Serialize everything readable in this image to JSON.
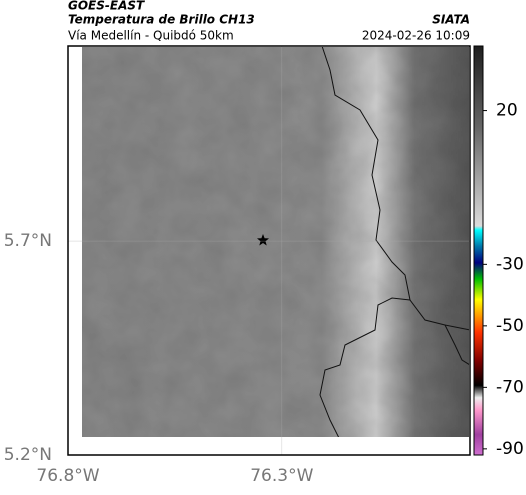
{
  "header": {
    "title": "GOES-EAST",
    "subtitle": "Temperatura de Brillo CH13",
    "source": "SIATA",
    "region": "Vía Medellín - Quibdó 50km",
    "datetime": "2024-02-26 10:09"
  },
  "map": {
    "xlim": [
      -76.8,
      -75.86
    ],
    "ylim": [
      5.2,
      6.156
    ],
    "xticks": [
      {
        "value": -76.8,
        "label": "76.8°W"
      },
      {
        "value": -76.3,
        "label": "76.3°W"
      }
    ],
    "yticks": [
      {
        "value": 5.7,
        "label": "5.7°N"
      },
      {
        "value": 5.2,
        "label": "5.2°N"
      }
    ]
  },
  "colorbar": {
    "lim": [
      -92,
      41
    ],
    "ticks": [
      20,
      -30,
      -50,
      -70,
      -90
    ]
  }
}
